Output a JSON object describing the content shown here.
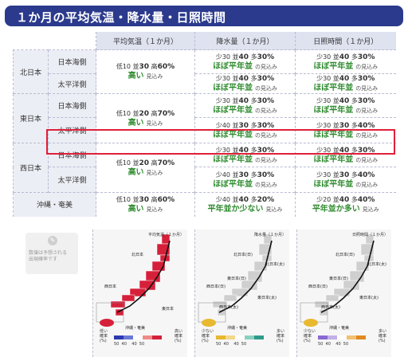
{
  "title": "１か月の平均気温・降水量・日照時間",
  "columns": [
    "平均気温（１か月）",
    "降水量（１か月）",
    "日照時間（１か月）"
  ],
  "rows": [
    {
      "region": "北日本",
      "sub": "日本海側",
      "temp": {
        "l1_a": "低",
        "l1_av": "10",
        "l1_b": "並",
        "l1_bv": "30",
        "l1_c": "高",
        "l1_cv": "60%",
        "pred": "高い",
        "mikomi": "見込み"
      },
      "rain": {
        "l1_a": "少",
        "l1_av": "30",
        "l1_b": "並",
        "l1_bv": "40",
        "l1_c": "多",
        "l1_cv": "30%",
        "pred": "ほぼ平年並",
        "mikomi": "の見込み"
      },
      "sun": {
        "l1_a": "少",
        "l1_av": "30",
        "l1_b": "並",
        "l1_bv": "40",
        "l1_c": "多",
        "l1_cv": "30%",
        "pred": "ほぼ平年並",
        "mikomi": "の見込み"
      }
    },
    {
      "sub": "太平洋側",
      "rain": {
        "l1_a": "少",
        "l1_av": "30",
        "l1_b": "並",
        "l1_bv": "40",
        "l1_c": "多",
        "l1_cv": "30%",
        "pred": "ほぼ平年並",
        "mikomi": "の見込み"
      },
      "sun": {
        "l1_a": "少",
        "l1_av": "30",
        "l1_b": "並",
        "l1_bv": "40",
        "l1_c": "多",
        "l1_cv": "30%",
        "pred": "ほぼ平年並",
        "mikomi": "の見込み"
      }
    },
    {
      "region": "東日本",
      "sub": "日本海側",
      "temp": {
        "l1_a": "低",
        "l1_av": "10",
        "l1_b": "並",
        "l1_bv": "20",
        "l1_c": "高",
        "l1_cv": "70%",
        "pred": "高い",
        "mikomi": "見込み"
      },
      "rain": {
        "l1_a": "少",
        "l1_av": "30",
        "l1_b": "並",
        "l1_bv": "40",
        "l1_c": "多",
        "l1_cv": "30%",
        "pred": "ほぼ平年並",
        "mikomi": "の見込み"
      },
      "sun": {
        "l1_a": "少",
        "l1_av": "30",
        "l1_b": "並",
        "l1_bv": "40",
        "l1_c": "多",
        "l1_cv": "30%",
        "pred": "ほぼ平年並",
        "mikomi": "の見込み"
      }
    },
    {
      "sub": "太平洋側",
      "rain": {
        "l1_a": "少",
        "l1_av": "40",
        "l1_b": "並",
        "l1_bv": "30",
        "l1_c": "多",
        "l1_cv": "30%",
        "pred": "ほぼ平年並",
        "mikomi": "の見込み"
      },
      "sun": {
        "l1_a": "少",
        "l1_av": "30",
        "l1_b": "並",
        "l1_bv": "30",
        "l1_c": "多",
        "l1_cv": "40%",
        "pred": "ほぼ平年並",
        "mikomi": "の見込み"
      }
    },
    {
      "region": "西日本",
      "sub": "日本海側",
      "temp": {
        "l1_a": "低",
        "l1_av": "10",
        "l1_b": "並",
        "l1_bv": "20",
        "l1_c": "高",
        "l1_cv": "70%",
        "pred": "高い",
        "mikomi": "見込み"
      },
      "rain": {
        "l1_a": "少",
        "l1_av": "30",
        "l1_b": "並",
        "l1_bv": "40",
        "l1_c": "多",
        "l1_cv": "30%",
        "pred": "ほぼ平年並",
        "mikomi": "の見込み"
      },
      "sun": {
        "l1_a": "少",
        "l1_av": "30",
        "l1_b": "並",
        "l1_bv": "40",
        "l1_c": "多",
        "l1_cv": "30%",
        "pred": "ほぼ平年並",
        "mikomi": "の見込み"
      }
    },
    {
      "sub": "太平洋側",
      "rain": {
        "l1_a": "少",
        "l1_av": "40",
        "l1_b": "並",
        "l1_bv": "30",
        "l1_c": "多",
        "l1_cv": "30%",
        "pred": "ほぼ平年並",
        "mikomi": "の見込み"
      },
      "sun": {
        "l1_a": "少",
        "l1_av": "30",
        "l1_b": "並",
        "l1_bv": "30",
        "l1_c": "多",
        "l1_cv": "40%",
        "pred": "ほぼ平年並",
        "mikomi": "の見込み"
      }
    },
    {
      "region": "沖縄・奄美",
      "temp": {
        "l1_a": "低",
        "l1_av": "10",
        "l1_b": "並",
        "l1_bv": "30",
        "l1_c": "高",
        "l1_cv": "60%",
        "pred": "高い",
        "mikomi": "見込み"
      },
      "rain": {
        "l1_a": "少",
        "l1_av": "40",
        "l1_b": "並",
        "l1_bv": "40",
        "l1_c": "多",
        "l1_cv": "20%",
        "pred": "平年並か少ない",
        "mikomi": "見込み"
      },
      "sun": {
        "l1_a": "少",
        "l1_av": "20",
        "l1_b": "並",
        "l1_bv": "40",
        "l1_c": "多",
        "l1_cv": "40%",
        "pred": "平年並か多い",
        "mikomi": "見込み"
      }
    }
  ],
  "note": {
    "line1": "数値は予想される",
    "line2": "出現確率です"
  },
  "maps": {
    "temp": {
      "title": "平均気温（１か月）",
      "north": "北日本",
      "east": "東日本",
      "west": "西日本",
      "okinawa": "沖縄・奄美",
      "low": "低い\n確率\n(%)",
      "high": "高い\n確率\n(%)",
      "nums": "50  40    40  50"
    },
    "rain": {
      "title": "降水量（１か月）",
      "north": "北日本(日)",
      "north2": "北日本(太)",
      "east": "東日本(日)",
      "east2": "東日本(太)",
      "west": "西日本(日)",
      "west2": "西日本(太)",
      "okinawa": "沖縄・奄美",
      "low": "少ない\n確率\n(%)",
      "high": "多い\n確率\n(%)",
      "nums": "50  40    40  50"
    },
    "sun": {
      "title": "日照時間（１か月）",
      "north": "北日本(日)",
      "north2": "北日本(太)",
      "east": "東日本(日)",
      "east2": "東日本(太)",
      "west": "西日本(日)",
      "west2": "西日本(太)",
      "okinawa": "沖縄・奄美",
      "low": "少ない\n確率\n(%)",
      "high": "多い\n確率\n(%)",
      "nums": "50  40    40  50"
    }
  },
  "colors": {
    "title_bg": "#2b3a8c",
    "predict_green": "#2e8b2e",
    "highlight": "#e0203a",
    "map_red": "#d6203a",
    "map_gray": "#cfcfcf",
    "map_yellow": "#e8b830"
  }
}
